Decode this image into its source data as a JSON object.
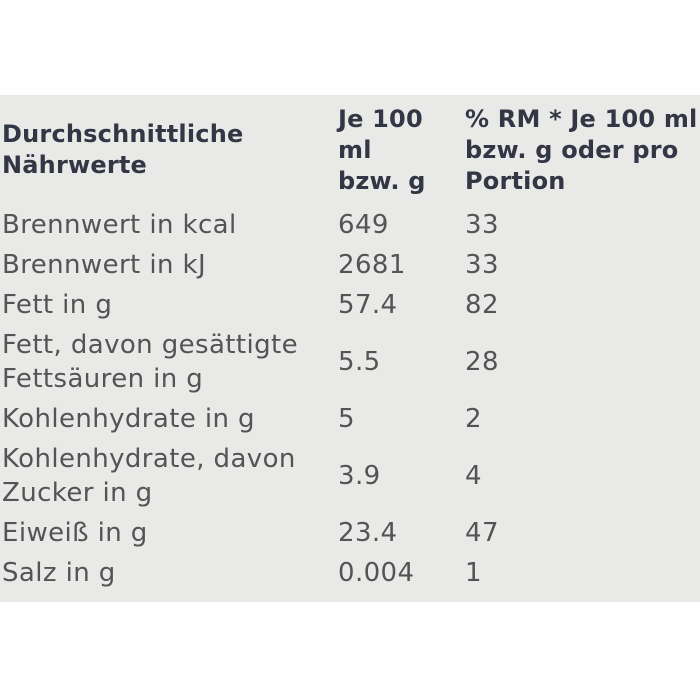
{
  "page": {
    "background": "#ffffff"
  },
  "colors": {
    "table_background": "#e9e9e7",
    "header_text": "#333745",
    "body_text": "#545454"
  },
  "table": {
    "header": {
      "col1": "Durchschnittliche\nNährwerte",
      "col2": "Je 100 ml\nbzw. g",
      "col3": "% RM * Je 100 ml\nbzw. g oder pro\nPortion"
    },
    "rows": [
      {
        "label": "Brennwert in kcal",
        "per100": "649",
        "rm": "33"
      },
      {
        "label": "Brennwert in kJ",
        "per100": "2681",
        "rm": "33"
      },
      {
        "label": "Fett in g",
        "per100": "57.4",
        "rm": "82"
      },
      {
        "label": "Fett, davon gesättigte\nFettsäuren in g",
        "per100": "5.5",
        "rm": "28"
      },
      {
        "label": "Kohlenhydrate in g",
        "per100": "5",
        "rm": "2"
      },
      {
        "label": "Kohlenhydrate, davon\nZucker in g",
        "per100": "3.9",
        "rm": "4"
      },
      {
        "label": "Eiweiß in g",
        "per100": "23.4",
        "rm": "47"
      },
      {
        "label": "Salz in g",
        "per100": "0.004",
        "rm": "1"
      }
    ]
  }
}
